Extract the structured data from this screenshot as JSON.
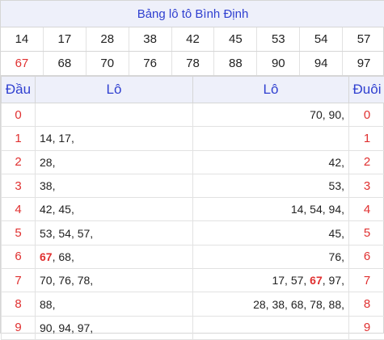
{
  "title": "Bảng lô tô Bình Định",
  "numbers_row1": [
    "14",
    "17",
    "28",
    "38",
    "42",
    "45",
    "53",
    "54",
    "57"
  ],
  "numbers_row2": [
    "67",
    "68",
    "70",
    "76",
    "78",
    "88",
    "90",
    "94",
    "97"
  ],
  "highlight_number": "67",
  "highlight_color": "#e03030",
  "accent_color": "#3040d0",
  "headers": {
    "dau": "Đầu",
    "lo_left": "Lô",
    "lo_right": "Lô",
    "duoi": "Đuôi"
  },
  "rows": [
    {
      "dau": "0",
      "left": [],
      "right": [
        "70",
        "90"
      ],
      "duoi": "0"
    },
    {
      "dau": "1",
      "left": [
        "14",
        "17"
      ],
      "right": [],
      "duoi": "1"
    },
    {
      "dau": "2",
      "left": [
        "28"
      ],
      "right": [
        "42"
      ],
      "duoi": "2"
    },
    {
      "dau": "3",
      "left": [
        "38"
      ],
      "right": [
        "53"
      ],
      "duoi": "3"
    },
    {
      "dau": "4",
      "left": [
        "42",
        "45"
      ],
      "right": [
        "14",
        "54",
        "94"
      ],
      "duoi": "4"
    },
    {
      "dau": "5",
      "left": [
        "53",
        "54",
        "57"
      ],
      "right": [
        "45"
      ],
      "duoi": "5"
    },
    {
      "dau": "6",
      "left": [
        "67",
        "68"
      ],
      "right": [
        "76"
      ],
      "duoi": "6"
    },
    {
      "dau": "7",
      "left": [
        "70",
        "76",
        "78"
      ],
      "right": [
        "17",
        "57",
        "67",
        "97"
      ],
      "duoi": "7"
    },
    {
      "dau": "8",
      "left": [
        "88"
      ],
      "right": [
        "28",
        "38",
        "68",
        "78",
        "88"
      ],
      "duoi": "8"
    },
    {
      "dau": "9",
      "left": [
        "90",
        "94",
        "97"
      ],
      "right": [],
      "duoi": "9"
    }
  ]
}
